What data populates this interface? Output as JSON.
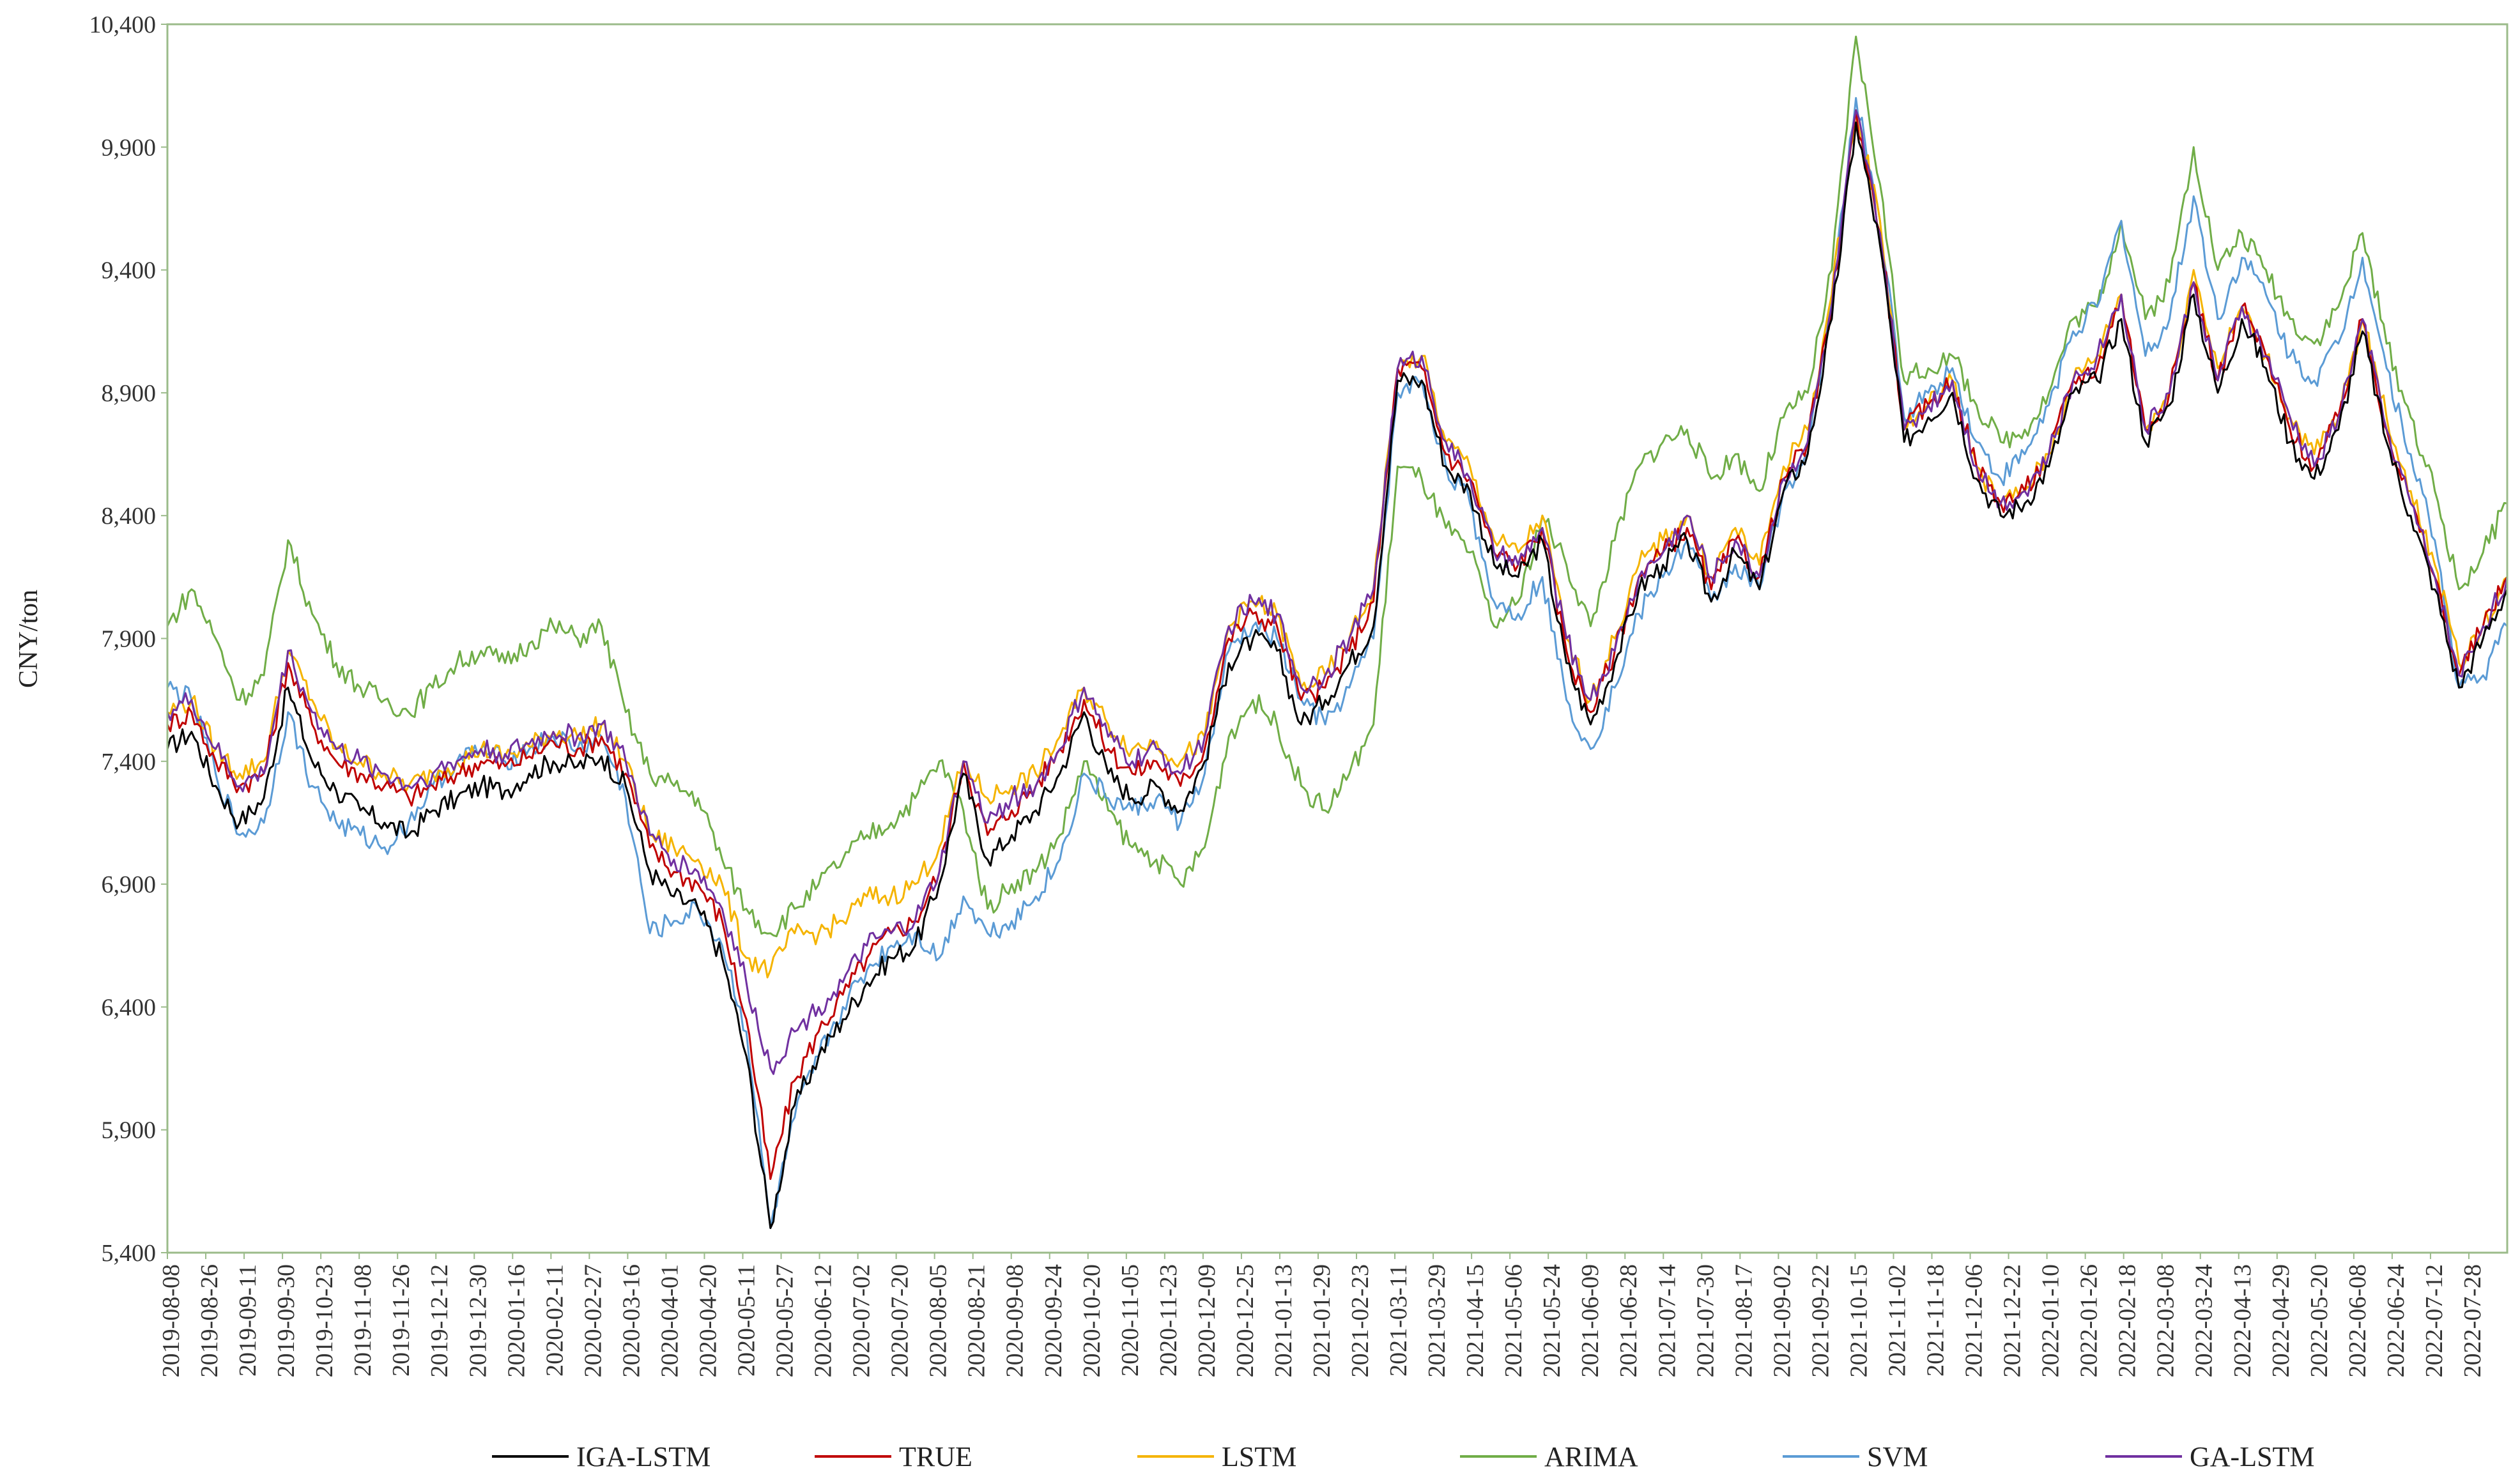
{
  "chart_data": {
    "type": "line",
    "title": "",
    "xlabel": "",
    "ylabel": "CNY/ton",
    "ylim": [
      5400,
      10400
    ],
    "yticks": [
      5400,
      5900,
      6400,
      6900,
      7400,
      7900,
      8400,
      8900,
      9400,
      9900,
      10400
    ],
    "ytick_labels": [
      "5,400",
      "5,900",
      "6,400",
      "6,900",
      "7,400",
      "7,900",
      "8,400",
      "8,900",
      "9,400",
      "9,900",
      "10,400"
    ],
    "x_tick_labels": [
      "2019-08-08",
      "2019-08-26",
      "2019-09-11",
      "2019-09-30",
      "2019-10-23",
      "2019-11-08",
      "2019-11-26",
      "2019-12-12",
      "2019-12-30",
      "2020-01-16",
      "2020-02-11",
      "2020-02-27",
      "2020-03-16",
      "2020-04-01",
      "2020-04-20",
      "2020-05-11",
      "2020-05-27",
      "2020-06-12",
      "2020-07-02",
      "2020-07-20",
      "2020-08-05",
      "2020-08-21",
      "2020-09-08",
      "2020-09-24",
      "2020-10-20",
      "2020-11-05",
      "2020-11-23",
      "2020-12-09",
      "2020-12-25",
      "2021-01-13",
      "2021-01-29",
      "2021-02-23",
      "2021-03-11",
      "2021-03-29",
      "2021-04-15",
      "2021-05-06",
      "2021-05-24",
      "2021-06-09",
      "2021-06-28",
      "2021-07-14",
      "2021-07-30",
      "2021-08-17",
      "2021-09-02",
      "2021-09-22",
      "2021-10-15",
      "2021-11-02",
      "2021-11-18",
      "2021-12-06",
      "2021-12-22",
      "2022-01-10",
      "2022-01-26",
      "2022-02-18",
      "2022-03-08",
      "2022-03-24",
      "2022-04-13",
      "2022-04-29",
      "2022-05-20",
      "2022-06-08",
      "2022-06-24",
      "2022-07-12",
      "2022-07-28"
    ],
    "grid": false,
    "legend_position": "bottom",
    "series": [
      {
        "name": "IGA-LSTM",
        "color": "#000000",
        "values": [
          7450,
          7520,
          7300,
          7150,
          7250,
          7700,
          7400,
          7280,
          7200,
          7150,
          7100,
          7200,
          7250,
          7300,
          7280,
          7350,
          7400,
          7380,
          7420,
          7300,
          6950,
          6850,
          6800,
          6600,
          6200,
          5500,
          6000,
          6200,
          6350,
          6500,
          6600,
          6650,
          6900,
          7350,
          7000,
          7100,
          7200,
          7350,
          7600,
          7350,
          7250,
          7300,
          7200,
          7400,
          7800,
          7900,
          7850,
          7550,
          7650,
          7800,
          7950,
          8950,
          8950,
          8600,
          8500,
          8200,
          8150,
          8300,
          7800,
          7550,
          7800,
          8100,
          8200,
          8300,
          8050,
          8250,
          8100,
          8500,
          8650,
          9200,
          10000,
          9500,
          8700,
          8800,
          8900,
          8550,
          8400,
          8450,
          8600,
          8900,
          8950,
          9200,
          8700,
          8850,
          9300,
          8900,
          9200,
          9000,
          8700,
          8550,
          8750,
          9150,
          8700,
          8400,
          8100,
          7700,
          7900,
          8100
        ]
      },
      {
        "name": "TRUE",
        "color": "#c00000",
        "values": [
          7550,
          7600,
          7400,
          7300,
          7350,
          7800,
          7550,
          7400,
          7350,
          7300,
          7250,
          7300,
          7350,
          7400,
          7380,
          7420,
          7480,
          7450,
          7500,
          7350,
          7050,
          6950,
          6900,
          6750,
          6350,
          5700,
          6100,
          6300,
          6450,
          6600,
          6700,
          6750,
          6950,
          7400,
          7100,
          7200,
          7300,
          7450,
          7650,
          7450,
          7350,
          7400,
          7300,
          7450,
          7900,
          8000,
          7950,
          7650,
          7700,
          7850,
          8050,
          9000,
          9000,
          8650,
          8550,
          8250,
          8200,
          8350,
          7850,
          7600,
          7850,
          8150,
          8250,
          8350,
          8100,
          8300,
          8150,
          8550,
          8700,
          9250,
          10050,
          9550,
          8750,
          8850,
          8950,
          8600,
          8450,
          8500,
          8650,
          8950,
          9000,
          9300,
          8750,
          8900,
          9350,
          8950,
          9250,
          9050,
          8750,
          8600,
          8800,
          9200,
          8750,
          8450,
          8150,
          7750,
          7950,
          8150
        ]
      },
      {
        "name": "LSTM",
        "color": "#f5b400",
        "values": [
          7600,
          7650,
          7450,
          7350,
          7400,
          7850,
          7650,
          7450,
          7400,
          7350,
          7300,
          7350,
          7400,
          7450,
          7420,
          7460,
          7520,
          7500,
          7550,
          7400,
          7100,
          7050,
          7000,
          6900,
          6600,
          6550,
          6700,
          6700,
          6750,
          6850,
          6850,
          6900,
          7050,
          7400,
          7250,
          7300,
          7350,
          7500,
          7700,
          7550,
          7450,
          7480,
          7400,
          7500,
          7950,
          8050,
          8000,
          7700,
          7750,
          7900,
          8100,
          9000,
          9050,
          8700,
          8600,
          8300,
          8250,
          8400,
          7900,
          7650,
          7900,
          8200,
          8300,
          8400,
          8150,
          8350,
          8200,
          8600,
          8750,
          9300,
          10050,
          9600,
          8750,
          8850,
          8950,
          8600,
          8450,
          8500,
          8650,
          8950,
          9050,
          9300,
          8750,
          8900,
          9400,
          9000,
          9250,
          9050,
          8800,
          8650,
          8800,
          9200,
          8800,
          8500,
          8200,
          7800,
          7950,
          8150
        ]
      },
      {
        "name": "ARIMA",
        "color": "#70ad47",
        "values": [
          7950,
          8100,
          7900,
          7650,
          7750,
          8300,
          8000,
          7800,
          7700,
          7650,
          7600,
          7700,
          7800,
          7850,
          7800,
          7880,
          7950,
          7900,
          7950,
          7600,
          7350,
          7300,
          7250,
          7000,
          6800,
          6700,
          6800,
          6900,
          7000,
          7100,
          7150,
          7250,
          7400,
          7200,
          6800,
          6900,
          6950,
          7100,
          7400,
          7200,
          7050,
          7000,
          6900,
          7050,
          7500,
          7650,
          7550,
          7300,
          7200,
          7350,
          7550,
          8600,
          8550,
          8350,
          8250,
          7950,
          8050,
          8400,
          8200,
          7950,
          8300,
          8600,
          8700,
          8750,
          8550,
          8650,
          8500,
          8800,
          8900,
          9400,
          10350,
          9750,
          8950,
          9000,
          9050,
          8850,
          8700,
          8750,
          8900,
          9200,
          9250,
          9600,
          9200,
          9350,
          9900,
          9400,
          9550,
          9400,
          9200,
          9100,
          9250,
          9550,
          9100,
          8800,
          8500,
          8100,
          8250,
          8450
        ]
      },
      {
        "name": "SVM",
        "color": "#5b9bd5",
        "values": [
          7700,
          7650,
          7350,
          7100,
          7150,
          7600,
          7300,
          7150,
          7100,
          7050,
          7150,
          7300,
          7400,
          7450,
          7400,
          7450,
          7500,
          7450,
          7500,
          7250,
          6700,
          6750,
          6800,
          6650,
          6300,
          5500,
          5950,
          6200,
          6400,
          6550,
          6650,
          6700,
          6600,
          6850,
          6700,
          6750,
          6850,
          7000,
          7350,
          7250,
          7200,
          7250,
          7150,
          7350,
          7850,
          7950,
          7900,
          7650,
          7550,
          7700,
          7900,
          8900,
          8950,
          8600,
          8450,
          8050,
          8000,
          8150,
          7650,
          7450,
          7700,
          8000,
          8150,
          8300,
          8050,
          8200,
          8100,
          8500,
          8650,
          9300,
          10100,
          9600,
          8800,
          8900,
          9000,
          8700,
          8550,
          8650,
          8850,
          9150,
          9250,
          9600,
          9050,
          9200,
          9700,
          9200,
          9450,
          9300,
          9050,
          8950,
          9100,
          9450,
          9000,
          8650,
          8300,
          7700,
          7750,
          7950
        ]
      },
      {
        "name": "GA-LSTM",
        "color": "#7030a0",
        "values": [
          7600,
          7650,
          7450,
          7300,
          7350,
          7850,
          7600,
          7450,
          7400,
          7350,
          7300,
          7350,
          7400,
          7450,
          7430,
          7470,
          7520,
          7500,
          7550,
          7400,
          7100,
          7000,
          6950,
          6800,
          6500,
          6150,
          6300,
          6400,
          6500,
          6650,
          6700,
          6750,
          6950,
          7400,
          7150,
          7250,
          7300,
          7450,
          7700,
          7500,
          7400,
          7450,
          7350,
          7500,
          7950,
          8050,
          8000,
          7700,
          7750,
          7900,
          8100,
          9000,
          9050,
          8700,
          8550,
          8250,
          8200,
          8350,
          7900,
          7650,
          7850,
          8150,
          8250,
          8400,
          8150,
          8300,
          8150,
          8550,
          8700,
          9250,
          10050,
          9550,
          8750,
          8850,
          8950,
          8600,
          8450,
          8500,
          8650,
          8950,
          9050,
          9300,
          8750,
          8900,
          9350,
          8950,
          9250,
          9050,
          8800,
          8600,
          8800,
          9200,
          8750,
          8450,
          8150,
          7750,
          7950,
          8150
        ]
      }
    ]
  }
}
